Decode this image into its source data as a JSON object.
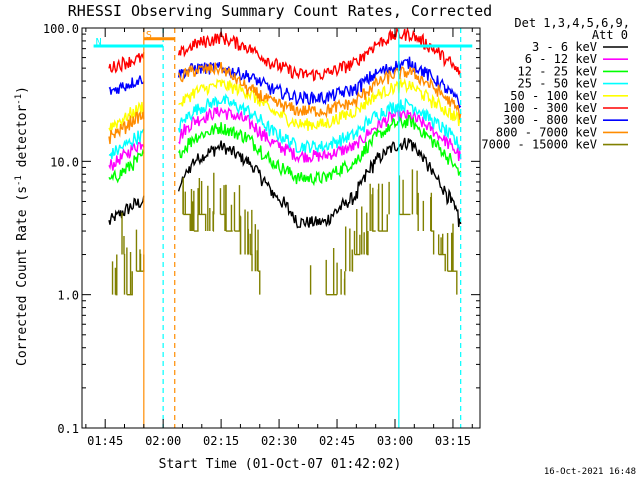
{
  "chart_data": {
    "type": "line",
    "title": "RHESSI Observing Summary Count Rates, Corrected",
    "xlabel": "Start Time (01-Oct-07 01:42:02)",
    "ylabel_prefix": "Corrected Count Rate (s",
    "ylabel_sup": "-1",
    "ylabel_mid": " detector",
    "ylabel_suffix": ")",
    "y_scale": "log",
    "ylim": [
      0.1,
      100
    ],
    "y_ticks": [
      {
        "value": 0.1,
        "label": "0.1"
      },
      {
        "value": 1,
        "label": "1.0"
      },
      {
        "value": 10,
        "label": "10.0"
      },
      {
        "value": 100,
        "label": "100.0"
      }
    ],
    "xlim": [
      "01:39",
      "03:22"
    ],
    "x_ticks": [
      {
        "value": "01:45",
        "label": "01:45"
      },
      {
        "value": "02:00",
        "label": "02:00"
      },
      {
        "value": "02:15",
        "label": "02:15"
      },
      {
        "value": "02:30",
        "label": "02:30"
      },
      {
        "value": "02:45",
        "label": "02:45"
      },
      {
        "value": "03:00",
        "label": "03:00"
      },
      {
        "value": "03:15",
        "label": "03:15"
      }
    ],
    "legend_header": [
      "Det 1,3,4,5,6,9,",
      "Att 0"
    ],
    "legend_position": "right",
    "timestamp": "16-Oct-2021 16:48",
    "segments": [
      {
        "start": "01:46",
        "end": "01:55"
      },
      {
        "start": "02:04",
        "end": "03:17"
      }
    ],
    "series": [
      {
        "name": "3 - 6 keV",
        "color": "#000000",
        "values": [
          [
            "01:46",
            3.5
          ],
          [
            "01:50",
            4.2
          ],
          [
            "01:53",
            4.8
          ],
          [
            "01:55",
            5.0
          ],
          [
            "02:04",
            6.0
          ],
          [
            "02:08",
            10.0
          ],
          [
            "02:15",
            13.0
          ],
          [
            "02:22",
            10.0
          ],
          [
            "02:28",
            6.0
          ],
          [
            "02:35",
            3.5
          ],
          [
            "02:42",
            3.5
          ],
          [
            "02:50",
            5.5
          ],
          [
            "02:55",
            10.0
          ],
          [
            "03:00",
            13.0
          ],
          [
            "03:04",
            14.0
          ],
          [
            "03:10",
            8.0
          ],
          [
            "03:17",
            3.5
          ]
        ]
      },
      {
        "name": "6 - 12 keV",
        "color": "#ff00ff",
        "values": [
          [
            "01:46",
            9.0
          ],
          [
            "01:50",
            11.0
          ],
          [
            "01:53",
            13.0
          ],
          [
            "01:55",
            14.0
          ],
          [
            "02:04",
            15.0
          ],
          [
            "02:08",
            20.0
          ],
          [
            "02:15",
            24.0
          ],
          [
            "02:22",
            20.0
          ],
          [
            "02:28",
            14.0
          ],
          [
            "02:35",
            11.0
          ],
          [
            "02:42",
            11.0
          ],
          [
            "02:50",
            13.0
          ],
          [
            "02:55",
            18.0
          ],
          [
            "03:00",
            22.0
          ],
          [
            "03:04",
            22.0
          ],
          [
            "03:10",
            17.0
          ],
          [
            "03:17",
            11.0
          ]
        ]
      },
      {
        "name": "12 - 25 keV",
        "color": "#00ff00",
        "values": [
          [
            "01:46",
            7.0
          ],
          [
            "01:50",
            8.5
          ],
          [
            "01:53",
            10.0
          ],
          [
            "01:55",
            11.0
          ],
          [
            "02:04",
            11.0
          ],
          [
            "02:08",
            15.0
          ],
          [
            "02:15",
            18.0
          ],
          [
            "02:22",
            15.0
          ],
          [
            "02:28",
            10.0
          ],
          [
            "02:35",
            7.5
          ],
          [
            "02:42",
            7.5
          ],
          [
            "02:50",
            10.0
          ],
          [
            "02:55",
            15.0
          ],
          [
            "03:00",
            19.0
          ],
          [
            "03:04",
            20.0
          ],
          [
            "03:10",
            14.0
          ],
          [
            "03:17",
            8.0
          ]
        ]
      },
      {
        "name": "25 - 50 keV",
        "color": "#00ffff",
        "values": [
          [
            "01:46",
            11.0
          ],
          [
            "01:50",
            13.0
          ],
          [
            "01:53",
            15.0
          ],
          [
            "01:55",
            16.0
          ],
          [
            "02:04",
            18.0
          ],
          [
            "02:08",
            24.0
          ],
          [
            "02:15",
            29.0
          ],
          [
            "02:22",
            24.0
          ],
          [
            "02:28",
            17.0
          ],
          [
            "02:35",
            13.0
          ],
          [
            "02:42",
            13.0
          ],
          [
            "02:50",
            16.0
          ],
          [
            "02:55",
            22.0
          ],
          [
            "03:00",
            26.0
          ],
          [
            "03:04",
            27.0
          ],
          [
            "03:10",
            20.0
          ],
          [
            "03:17",
            13.0
          ]
        ]
      },
      {
        "name": "50 - 100 keV",
        "color": "#ffff00",
        "values": [
          [
            "01:46",
            18.0
          ],
          [
            "01:50",
            21.0
          ],
          [
            "01:53",
            24.0
          ],
          [
            "01:55",
            26.0
          ],
          [
            "02:04",
            26.0
          ],
          [
            "02:08",
            33.0
          ],
          [
            "02:15",
            38.0
          ],
          [
            "02:22",
            33.0
          ],
          [
            "02:28",
            24.0
          ],
          [
            "02:35",
            19.0
          ],
          [
            "02:42",
            19.0
          ],
          [
            "02:50",
            24.0
          ],
          [
            "02:55",
            31.0
          ],
          [
            "03:00",
            36.0
          ],
          [
            "03:04",
            37.0
          ],
          [
            "03:10",
            28.0
          ],
          [
            "03:17",
            20.0
          ]
        ]
      },
      {
        "name": "100 - 300 keV",
        "color": "#ff0000",
        "values": [
          [
            "01:46",
            50.0
          ],
          [
            "01:50",
            55.0
          ],
          [
            "01:53",
            58.0
          ],
          [
            "01:55",
            60.0
          ],
          [
            "02:04",
            62.0
          ],
          [
            "02:08",
            75.0
          ],
          [
            "02:15",
            85.0
          ],
          [
            "02:22",
            72.0
          ],
          [
            "02:28",
            55.0
          ],
          [
            "02:35",
            45.0
          ],
          [
            "02:42",
            45.0
          ],
          [
            "02:50",
            55.0
          ],
          [
            "02:55",
            75.0
          ],
          [
            "03:00",
            88.0
          ],
          [
            "03:04",
            90.0
          ],
          [
            "03:10",
            70.0
          ],
          [
            "03:17",
            45.0
          ]
        ]
      },
      {
        "name": "300 - 800 keV",
        "color": "#0000ff",
        "values": [
          [
            "01:46",
            33.0
          ],
          [
            "01:50",
            37.0
          ],
          [
            "01:53",
            40.0
          ],
          [
            "01:55",
            42.0
          ],
          [
            "02:04",
            45.0
          ],
          [
            "02:08",
            50.0
          ],
          [
            "02:15",
            50.0
          ],
          [
            "02:22",
            44.0
          ],
          [
            "02:28",
            35.0
          ],
          [
            "02:35",
            30.0
          ],
          [
            "02:42",
            30.0
          ],
          [
            "02:50",
            35.0
          ],
          [
            "02:55",
            45.0
          ],
          [
            "03:00",
            52.0
          ],
          [
            "03:04",
            55.0
          ],
          [
            "03:10",
            42.0
          ],
          [
            "03:17",
            27.0
          ]
        ]
      },
      {
        "name": "800 - 7000 keV",
        "color": "#ff8c00",
        "values": [
          [
            "01:46",
            15.0
          ],
          [
            "01:50",
            18.0
          ],
          [
            "01:53",
            21.0
          ],
          [
            "01:55",
            22.0
          ],
          [
            "02:04",
            42.0
          ],
          [
            "02:08",
            48.0
          ],
          [
            "02:15",
            50.0
          ],
          [
            "02:22",
            35.0
          ],
          [
            "02:28",
            28.0
          ],
          [
            "02:35",
            24.0
          ],
          [
            "02:42",
            24.0
          ],
          [
            "02:50",
            28.0
          ],
          [
            "02:55",
            38.0
          ],
          [
            "03:00",
            45.0
          ],
          [
            "03:04",
            47.0
          ],
          [
            "03:10",
            36.0
          ],
          [
            "03:17",
            23.0
          ]
        ]
      },
      {
        "name": "7000 - 15000 keV",
        "color": "#808000",
        "step": true,
        "values": [
          [
            "01:46",
            1.0
          ],
          [
            "01:48",
            2.0
          ],
          [
            "01:50",
            1.0
          ],
          [
            "01:52",
            1.5
          ],
          [
            "01:55",
            2.0
          ],
          [
            "02:04",
            4.0
          ],
          [
            "02:07",
            3.0
          ],
          [
            "02:09",
            4.0
          ],
          [
            "02:11",
            3.0
          ],
          [
            "02:13",
            4.0
          ],
          [
            "02:16",
            3.0
          ],
          [
            "02:18",
            3.0
          ],
          [
            "02:20",
            2.0
          ],
          [
            "02:22",
            2.0
          ],
          [
            "02:23",
            1.5
          ],
          [
            "02:25",
            1.0
          ],
          [
            "02:45",
            1.0
          ],
          [
            "02:47",
            1.5
          ],
          [
            "02:49",
            2.0
          ],
          [
            "02:51",
            2.0
          ],
          [
            "02:53",
            3.0
          ],
          [
            "02:55",
            3.0
          ],
          [
            "02:58",
            4.0
          ],
          [
            "03:04",
            4.0
          ],
          [
            "03:06",
            3.0
          ],
          [
            "03:10",
            2.0
          ],
          [
            "03:13",
            1.5
          ],
          [
            "03:16",
            1.0
          ]
        ]
      }
    ],
    "markers": [
      {
        "kind": "vline",
        "time": "01:55",
        "color": "#ff8c00",
        "style": "solid"
      },
      {
        "kind": "vline",
        "time": "02:03",
        "color": "#ff8c00",
        "style": "dashed"
      },
      {
        "kind": "vline",
        "time": "02:00",
        "color": "#00ffff",
        "style": "dashed"
      },
      {
        "kind": "vline",
        "time": "03:01",
        "color": "#00ffff",
        "style": "solid"
      },
      {
        "kind": "vline",
        "time": "03:17",
        "color": "#00ffff",
        "style": "dashed"
      },
      {
        "kind": "hbar",
        "label": "S",
        "color": "#ff8c00",
        "start": "01:55",
        "end": "02:03",
        "y_frac": 0.045
      },
      {
        "kind": "hbar",
        "label": "N",
        "color": "#00ffff",
        "start": "01:42",
        "end": "02:00",
        "y_frac": 0.075
      },
      {
        "kind": "hbar",
        "label": "",
        "color": "#00ffff",
        "start": "03:01",
        "end": "03:20",
        "y_frac": 0.075
      }
    ]
  }
}
